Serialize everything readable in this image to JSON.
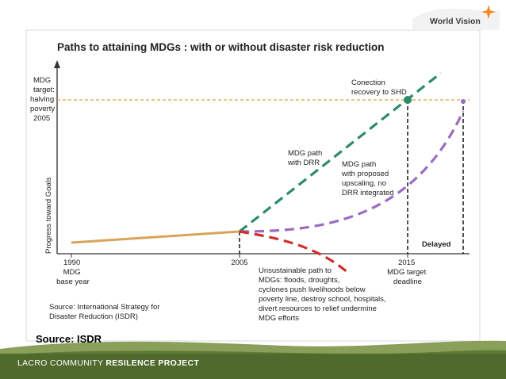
{
  "logo": {
    "brand_text": "World Vision"
  },
  "chart": {
    "title": "Paths to attaining MDGs : with or without disaster risk reduction",
    "y_target_label": [
      "MDG",
      "target:",
      "halving",
      "poverty",
      "2005"
    ],
    "y_axis_label": "Progress toward Goals",
    "x_ticks": [
      {
        "lines": [
          "1990",
          "MDG",
          "base year"
        ]
      },
      {
        "lines": [
          "2005"
        ]
      },
      {
        "lines": [
          "2015",
          "MDG target",
          "deadline"
        ]
      }
    ],
    "annotations": {
      "recovery": [
        "Conection",
        "recovery to SHD"
      ],
      "with_drr": [
        "MDG path",
        "with DRR"
      ],
      "upscaling": [
        "MDG path",
        "with proposed",
        "upscaling, no",
        "DRR integrated"
      ],
      "delayed": "Delayed",
      "unsustainable": [
        "Unsustainable path to",
        "MDGs: floods, droughts,",
        "cyclones push livelihoods below",
        "poverty line, destroy school, hospitals,",
        "divert resources to relief undermine",
        "MDG efforts"
      ]
    },
    "source_note": [
      "Source: International Strategy for",
      "Disaster Reduction (ISDR)"
    ],
    "colors": {
      "baseline": "#d9a35a",
      "drr_path": "#2e8b6a",
      "no_drr_path": "#9b6bc0",
      "unsustainable_path": "#d42b2b",
      "target_line": "#e0a040"
    }
  },
  "source_label": "Source: ISDR",
  "footer": {
    "prefix": "LACRO COMMUNITY",
    "bold": "RESILENCE PROJECT"
  }
}
